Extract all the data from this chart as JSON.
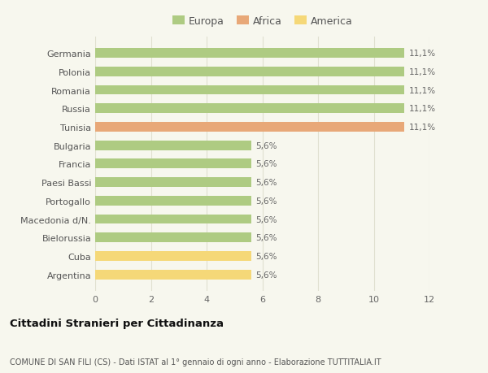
{
  "categories": [
    "Germania",
    "Polonia",
    "Romania",
    "Russia",
    "Tunisia",
    "Bulgaria",
    "Francia",
    "Paesi Bassi",
    "Portogallo",
    "Macedonia d/N.",
    "Bielorussia",
    "Cuba",
    "Argentina"
  ],
  "values": [
    11.1,
    11.1,
    11.1,
    11.1,
    11.1,
    5.6,
    5.6,
    5.6,
    5.6,
    5.6,
    5.6,
    5.6,
    5.6
  ],
  "colors": [
    "#aecb82",
    "#aecb82",
    "#aecb82",
    "#aecb82",
    "#e8a878",
    "#aecb82",
    "#aecb82",
    "#aecb82",
    "#aecb82",
    "#aecb82",
    "#aecb82",
    "#f5d878",
    "#f5d878"
  ],
  "bar_labels": [
    "11,1%",
    "11,1%",
    "11,1%",
    "11,1%",
    "11,1%",
    "5,6%",
    "5,6%",
    "5,6%",
    "5,6%",
    "5,6%",
    "5,6%",
    "5,6%",
    "5,6%"
  ],
  "legend": [
    {
      "label": "Europa",
      "color": "#aecb82"
    },
    {
      "label": "Africa",
      "color": "#e8a878"
    },
    {
      "label": "America",
      "color": "#f5d878"
    }
  ],
  "xlim": [
    0,
    12
  ],
  "xticks": [
    0,
    2,
    4,
    6,
    8,
    10,
    12
  ],
  "title_main": "Cittadini Stranieri per Cittadinanza",
  "title_sub": "COMUNE DI SAN FILI (CS) - Dati ISTAT al 1° gennaio di ogni anno - Elaborazione TUTTITALIA.IT",
  "bg_color": "#f7f7ee",
  "plot_bg_color": "#f7f7ee",
  "grid_color": "#e0e0d0"
}
